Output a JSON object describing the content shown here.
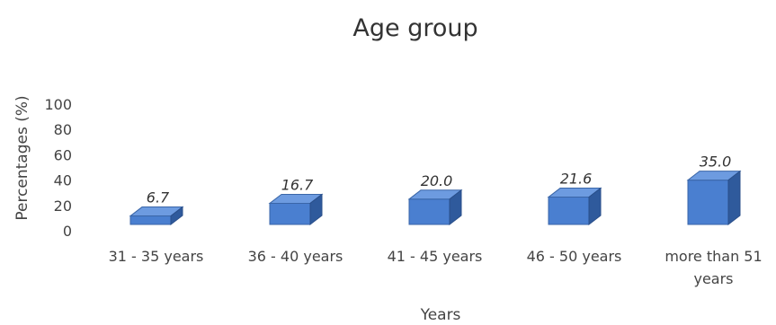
{
  "chart_data": {
    "type": "bar",
    "title": "Age group",
    "xlabel": "Years",
    "ylabel": "Percentages (%)",
    "ylim": [
      0,
      100
    ],
    "yticks": [
      0,
      20,
      40,
      60,
      80,
      100
    ],
    "categories": [
      "31 - 35 years",
      "36 - 40 years",
      "41 - 45 years",
      "46 - 50 years",
      "more than 51 years"
    ],
    "values": [
      6.7,
      16.7,
      20.0,
      21.6,
      35.0
    ],
    "data_labels": [
      "6.7",
      "16.7",
      "20.0",
      "21.6",
      "35.0"
    ],
    "grid": false,
    "bar_color": "#4a7fd0"
  }
}
